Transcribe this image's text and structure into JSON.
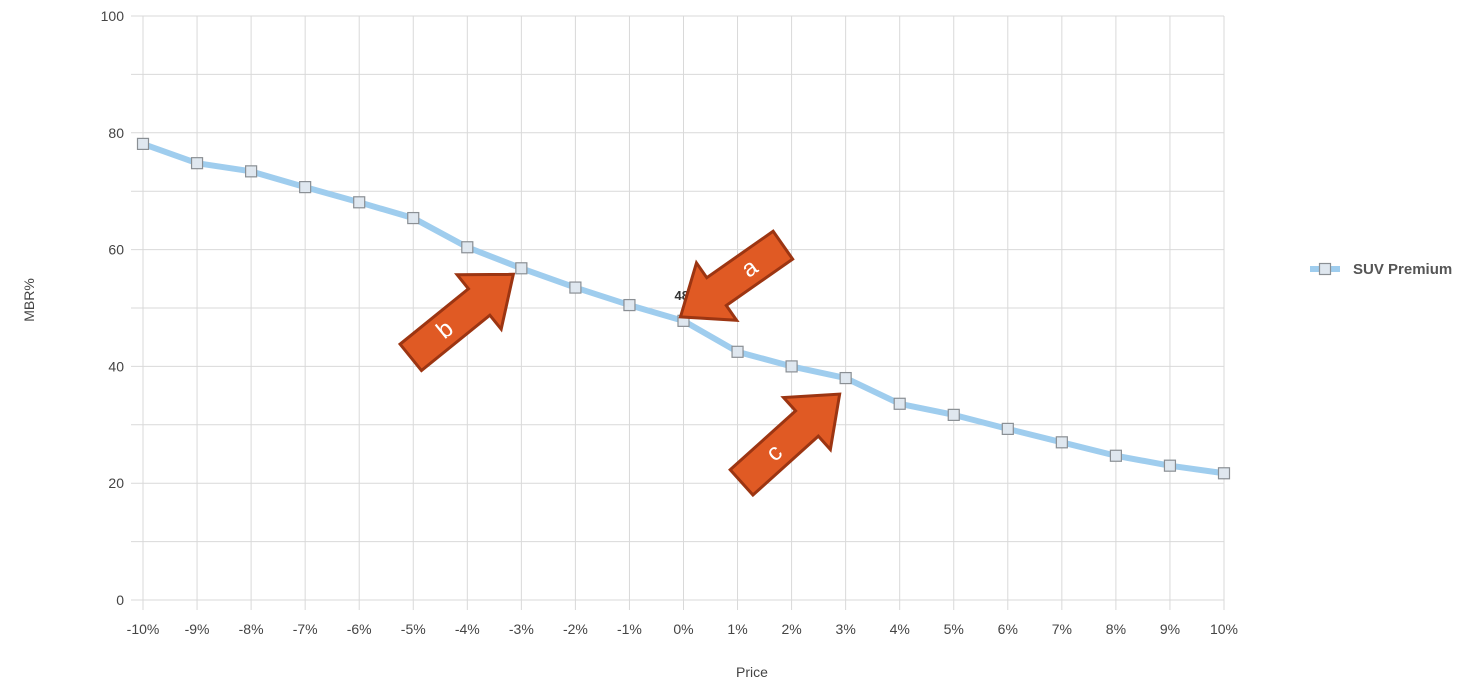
{
  "chart_data": {
    "type": "line",
    "x": [
      "-10%",
      "-9%",
      "-8%",
      "-7%",
      "-6%",
      "-5%",
      "-4%",
      "-3%",
      "-2%",
      "-1%",
      "0%",
      "1%",
      "2%",
      "3%",
      "4%",
      "5%",
      "6%",
      "7%",
      "8%",
      "9%",
      "10%"
    ],
    "series": [
      {
        "name": "SUV Premium",
        "color": "#9fcdee",
        "values": [
          78.1,
          74.8,
          73.4,
          70.7,
          68.1,
          65.4,
          60.4,
          56.8,
          53.5,
          50.5,
          47.8,
          42.5,
          40.0,
          38.0,
          33.6,
          31.7,
          29.3,
          27.0,
          24.7,
          23.0,
          21.7
        ]
      }
    ],
    "xlabel": "Price",
    "ylabel": "MBR%",
    "ylim": [
      0,
      100
    ],
    "yticks": [
      0,
      20,
      40,
      60,
      80,
      100
    ],
    "y_minor_step": 10,
    "grid": true,
    "legend_position": "right",
    "point_label": {
      "index": 10,
      "text": "48"
    },
    "annotations": [
      {
        "letter": "a",
        "target_index": 10,
        "color": "#e05a24"
      },
      {
        "letter": "b",
        "target_index": 7,
        "color": "#e05a24"
      },
      {
        "letter": "c",
        "target_index": 13,
        "color": "#e05a24"
      }
    ]
  }
}
